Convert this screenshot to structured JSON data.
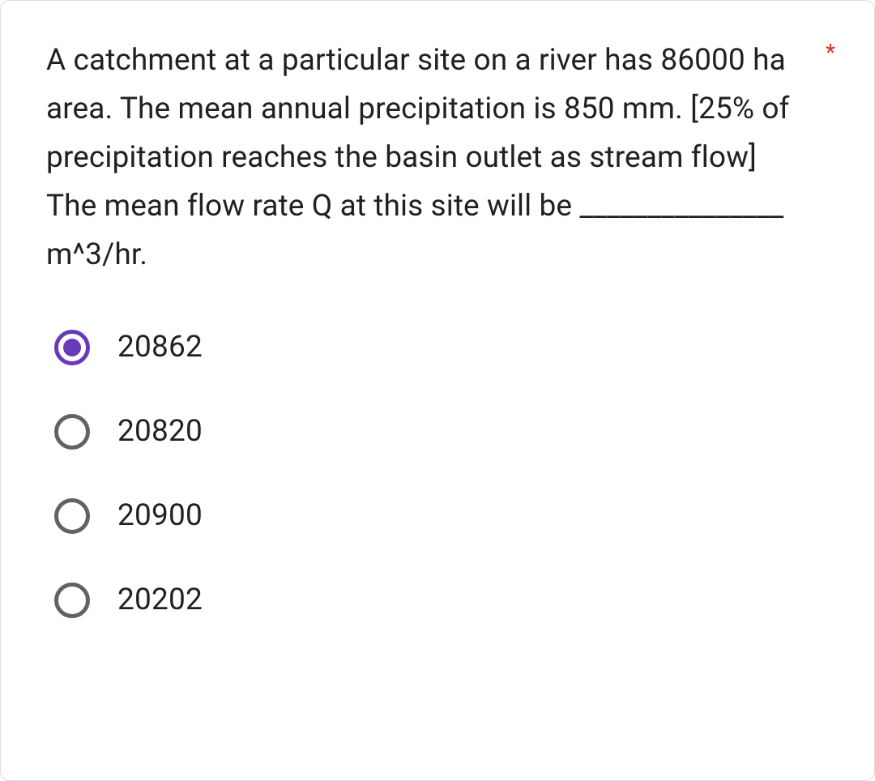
{
  "question": {
    "text": "A catchment at a particular site on a river has 86000 ha area. The mean annual precipitation is 850 mm. [25% of precipitation reaches the basin outlet as stream flow] The mean flow rate Q at this site will be _______________ m^3/hr.",
    "required_marker": "*",
    "required_color": "#d93025",
    "text_color": "#202124",
    "font_size_pt": 28
  },
  "options": [
    {
      "label": "20862",
      "selected": true
    },
    {
      "label": "20820",
      "selected": false
    },
    {
      "label": "20900",
      "selected": false
    },
    {
      "label": "20202",
      "selected": false
    }
  ],
  "style": {
    "background_color": "#ffffff",
    "border_color": "#dadce0",
    "radio_unselected_border": "#5f6368",
    "radio_selected_color": "#673ab7",
    "option_text_color": "#202124",
    "option_font_size_pt": 28
  }
}
